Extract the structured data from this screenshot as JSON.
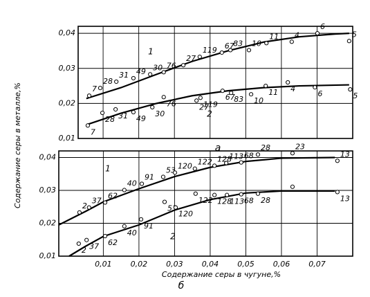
{
  "chart_data": [
    {
      "type": "scatter",
      "title": "а",
      "ylabel": "Содержание серы в металле,%",
      "xlim": [
        0.003,
        0.08
      ],
      "ylim": [
        0.01,
        0.042
      ],
      "yticks": [
        {
          "value": 0.01,
          "label": "0,01"
        },
        {
          "value": 0.02,
          "label": "0,02"
        },
        {
          "value": 0.03,
          "label": "0,03"
        },
        {
          "value": 0.04,
          "label": "0,04"
        }
      ],
      "grid": true,
      "curves": [
        {
          "name": "1",
          "color": "#000000",
          "x": [
            0.0053,
            0.015,
            0.025,
            0.035,
            0.045,
            0.055,
            0.065,
            0.075,
            0.079
          ],
          "values": [
            0.0214,
            0.0245,
            0.0283,
            0.032,
            0.035,
            0.0375,
            0.039,
            0.0398,
            0.04
          ]
        },
        {
          "name": "2",
          "color": "#000000",
          "x": [
            0.0053,
            0.015,
            0.025,
            0.035,
            0.045,
            0.055,
            0.065,
            0.079
          ],
          "values": [
            0.0139,
            0.0172,
            0.02,
            0.0222,
            0.0236,
            0.0245,
            0.025,
            0.0253
          ]
        }
      ],
      "series": [
        {
          "color": "#000000",
          "x": [
            0.0061,
            0.0092,
            0.0137,
            0.0185,
            0.0232,
            0.027,
            0.0325,
            0.0371,
            0.0433,
            0.0457,
            0.0509,
            0.0558,
            0.0629,
            0.0701,
            0.079
          ],
          "values": [
            0.0222,
            0.0244,
            0.0262,
            0.0272,
            0.0283,
            0.0289,
            0.0309,
            0.0333,
            0.0345,
            0.0352,
            0.0352,
            0.0372,
            0.0376,
            0.04,
            0.0378
          ],
          "point_labels": [
            "7",
            "28",
            "31",
            "49",
            "30",
            "76",
            "27",
            "119",
            "67",
            "83",
            "10",
            "11",
            "4",
            "6",
            "5"
          ]
        },
        {
          "color": "#000000",
          "x": [
            0.0057,
            0.0098,
            0.0135,
            0.0185,
            0.0238,
            0.027,
            0.0362,
            0.0373,
            0.0435,
            0.0459,
            0.0515,
            0.0556,
            0.0618,
            0.0694,
            0.0793
          ],
          "values": [
            0.0137,
            0.0173,
            0.0183,
            0.0175,
            0.0189,
            0.0218,
            0.0208,
            0.0216,
            0.0236,
            0.023,
            0.0226,
            0.025,
            0.026,
            0.0246,
            0.024
          ],
          "point_labels": [
            "7",
            "28",
            "31",
            "49",
            "30",
            "76",
            "27",
            "119",
            "67",
            "83",
            "10",
            "11",
            "4",
            "6",
            "5"
          ]
        }
      ]
    },
    {
      "type": "scatter",
      "title": "б",
      "xlabel": "Содержание серы в чугуне,%",
      "xlim": [
        -0.0025,
        0.08
      ],
      "ylim": [
        0.01,
        0.042
      ],
      "xticks": [
        {
          "value": 0.01,
          "label": "0,01"
        },
        {
          "value": 0.02,
          "label": "0,02"
        },
        {
          "value": 0.03,
          "label": "0,03"
        },
        {
          "value": 0.04,
          "label": "0,04"
        },
        {
          "value": 0.05,
          "label": "0,05"
        },
        {
          "value": 0.06,
          "label": "0,06"
        },
        {
          "value": 0.07,
          "label": "0,07"
        }
      ],
      "yticks": [
        {
          "value": 0.01,
          "label": "0,01"
        },
        {
          "value": 0.02,
          "label": "0,02"
        },
        {
          "value": 0.03,
          "label": "0,03"
        },
        {
          "value": 0.04,
          "label": "0,04"
        }
      ],
      "grid": true,
      "curves": [
        {
          "name": "1",
          "color": "#000000",
          "x": [
            -0.0025,
            0.005,
            0.01,
            0.02,
            0.03,
            0.04,
            0.05,
            0.06,
            0.075
          ],
          "values": [
            0.0195,
            0.0236,
            0.0265,
            0.0305,
            0.0342,
            0.037,
            0.0388,
            0.0398,
            0.04
          ]
        },
        {
          "name": "2",
          "color": "#000000",
          "x": [
            0.0004,
            0.005,
            0.01,
            0.02,
            0.03,
            0.04,
            0.05,
            0.06,
            0.075
          ],
          "values": [
            0.01,
            0.013,
            0.016,
            0.0195,
            0.024,
            0.0272,
            0.0292,
            0.0298,
            0.0298
          ]
        }
      ],
      "series": [
        {
          "color": "#000000",
          "x": [
            0.0033,
            0.006,
            0.0105,
            0.0159,
            0.0208,
            0.0268,
            0.0301,
            0.0357,
            0.0412,
            0.0445,
            0.0487,
            0.0534,
            0.0631,
            0.0757
          ],
          "values": [
            0.0233,
            0.0248,
            0.0263,
            0.0301,
            0.032,
            0.0341,
            0.0354,
            0.0366,
            0.0375,
            0.0383,
            0.0385,
            0.0409,
            0.0413,
            0.039
          ],
          "point_labels": [
            "2",
            "37",
            "62",
            "40",
            "91",
            "53",
            "120",
            "122",
            "128",
            "113",
            "68",
            "28",
            "23",
            "13"
          ]
        },
        {
          "color": "#000000",
          "x": [
            0.0031,
            0.0053,
            0.0105,
            0.0159,
            0.0206,
            0.0272,
            0.0303,
            0.0359,
            0.0412,
            0.0447,
            0.0487,
            0.0534,
            0.0631,
            0.0757
          ],
          "values": [
            0.0138,
            0.0149,
            0.0161,
            0.0191,
            0.0212,
            0.0265,
            0.0248,
            0.029,
            0.0286,
            0.0286,
            0.0288,
            0.029,
            0.0311,
            0.0295
          ],
          "point_labels": [
            "2",
            "37",
            "62",
            "40",
            "91",
            "53",
            "120",
            "122",
            "128",
            "113",
            "68",
            "28",
            null,
            "13"
          ]
        }
      ]
    }
  ]
}
